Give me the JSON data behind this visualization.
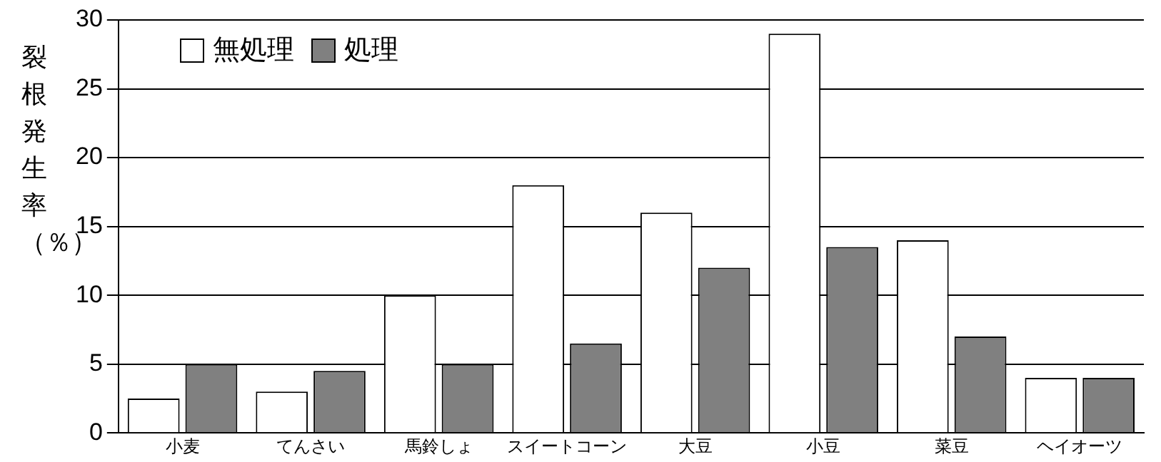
{
  "chart_data": {
    "type": "bar",
    "ylabel": "裂根発生率（％）",
    "categories": [
      "小麦",
      "てんさい",
      "馬鈴しょ",
      "スイートコーン",
      "大豆",
      "小豆",
      "菜豆",
      "ヘイオーツ"
    ],
    "series": [
      {
        "name": "無処理",
        "color": "#ffffff",
        "values": [
          2.5,
          3,
          10,
          18,
          16,
          29,
          14,
          4
        ]
      },
      {
        "name": "処理",
        "color": "#808080",
        "values": [
          5,
          4.5,
          5,
          6.5,
          12,
          13.5,
          7,
          4
        ]
      }
    ],
    "ylim": [
      0,
      30
    ],
    "yticks": [
      0,
      5,
      10,
      15,
      20,
      25,
      30
    ],
    "grid": "y",
    "legend": "top left"
  }
}
